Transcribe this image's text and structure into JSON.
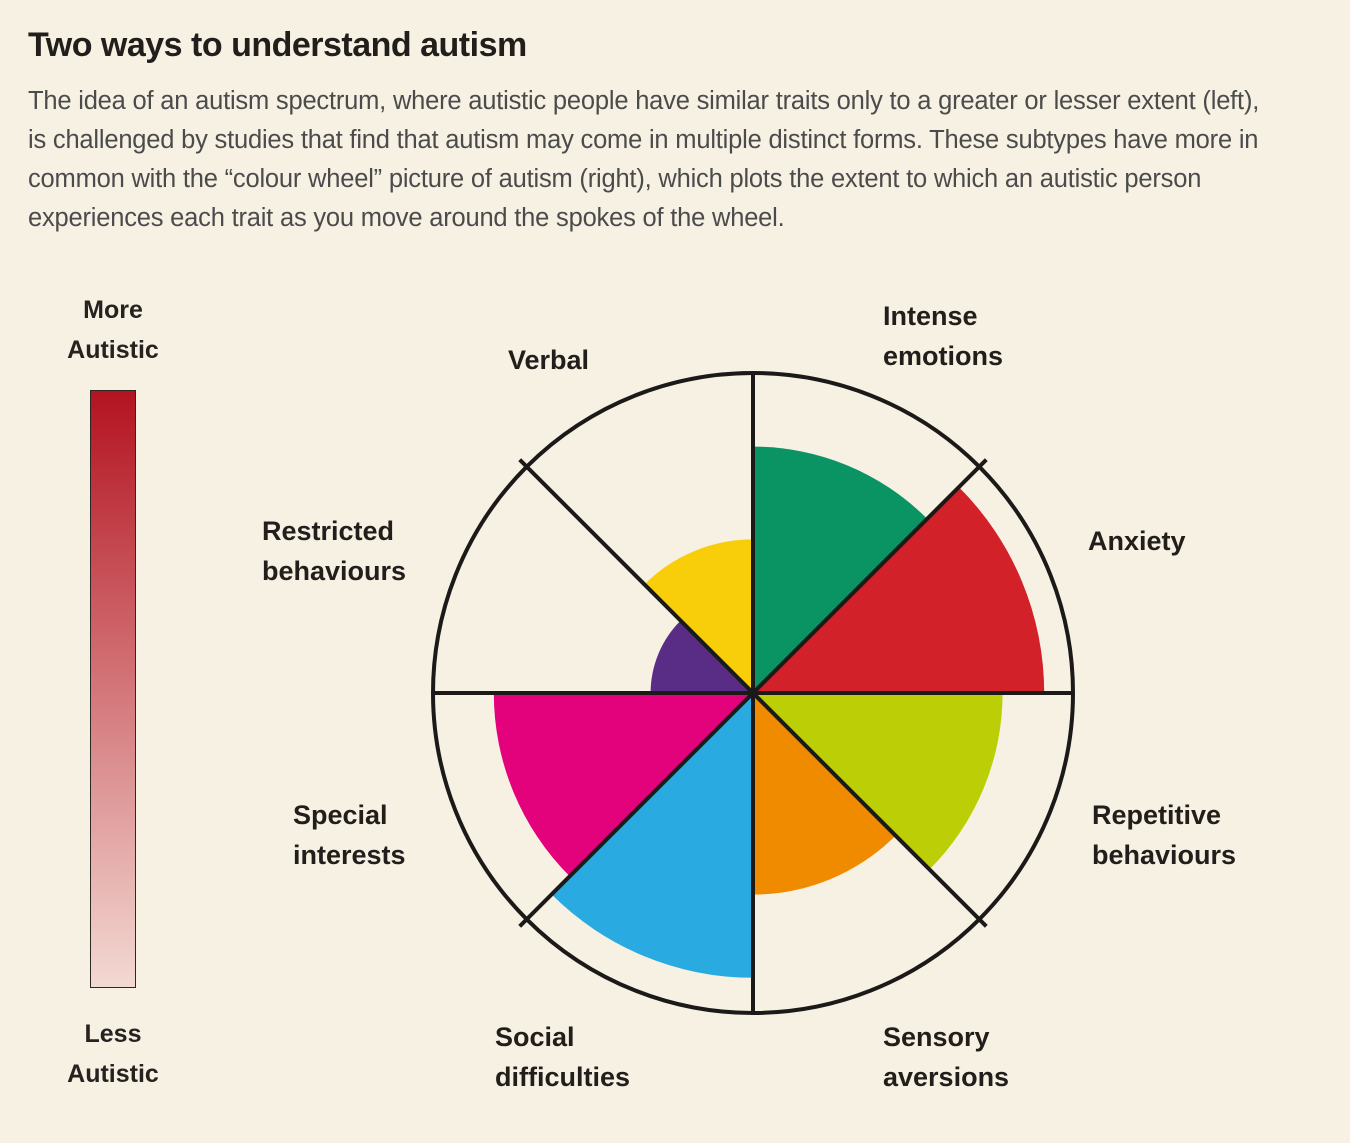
{
  "page": {
    "title": "Two ways to understand autism",
    "description": "The idea of an autism spectrum, where autistic people have similar traits only to a greater or lesser extent (left), is challenged by studies that find that autism may come in multiple distinct forms. These subtypes have more in common with the “colour wheel” picture of autism (right), which plots the extent to which an autistic person experiences each trait as you move around the spokes of the wheel."
  },
  "scale": {
    "top_label": "More\nAutistic",
    "bottom_label": "Less\nAutistic",
    "top_color": "#b31320",
    "bottom_color": "#f3d9d3"
  },
  "chart_data": {
    "type": "pie",
    "subtype": "polar-area colour wheel (8 equal 45° spokes, radius encodes extent of trait)",
    "title": "Two ways to understand autism",
    "order": "clockwise from 12 o'clock",
    "value_scale": "0 = centre (less of trait), 1 = outer rim (more of trait)",
    "traits": [
      {
        "label": "Intense\nemotions",
        "value": 0.77,
        "color": "#0b9463"
      },
      {
        "label": "Anxiety",
        "value": 0.91,
        "color": "#d3212a"
      },
      {
        "label": "Repetitive\nbehaviours",
        "value": 0.78,
        "color": "#bccf06"
      },
      {
        "label": "Sensory\naversions",
        "value": 0.63,
        "color": "#f08b00"
      },
      {
        "label": "Social\ndifficulties",
        "value": 0.89,
        "color": "#29abe2"
      },
      {
        "label": "Special\ninterests",
        "value": 0.81,
        "color": "#e4027c"
      },
      {
        "label": "Restricted\nbehaviours",
        "value": 0.32,
        "color": "#592d85"
      },
      {
        "label": "Verbal",
        "value": 0.48,
        "color": "#f8ce0b"
      }
    ],
    "wheel_line_color": "#1c1a18"
  }
}
